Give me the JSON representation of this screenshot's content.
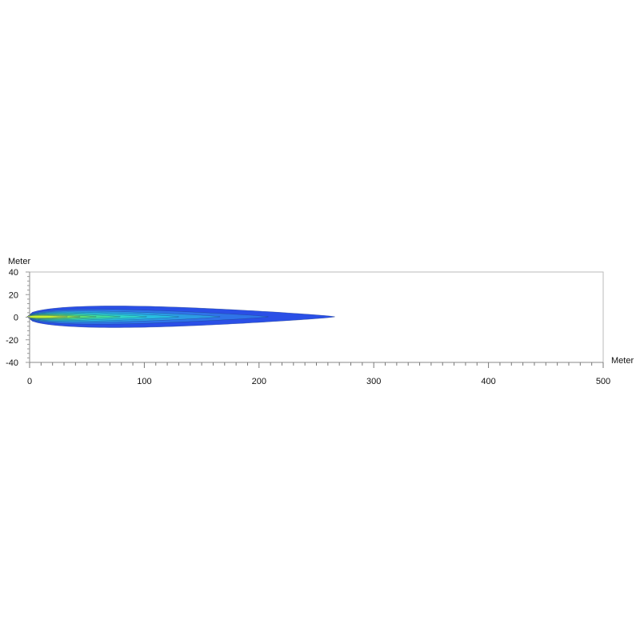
{
  "chart_data": {
    "type": "heatmap",
    "title": "",
    "xlabel": "Meter",
    "ylabel": "Meter",
    "xlim": [
      0,
      500
    ],
    "ylim": [
      -40,
      40
    ],
    "x_ticks": [
      0,
      100,
      200,
      300,
      400,
      500
    ],
    "y_ticks": [
      40,
      20,
      0,
      -20,
      -40
    ],
    "grid": false,
    "contours": [
      {
        "reach_m": 266,
        "half_width_m": 9.5,
        "color": "#2a4fe6"
      },
      {
        "reach_m": 208,
        "half_width_m": 6.5,
        "color": "#2f74e8"
      },
      {
        "reach_m": 166,
        "half_width_m": 5,
        "color": "#2c9be4"
      },
      {
        "reach_m": 130,
        "half_width_m": 4,
        "color": "#28bde0"
      },
      {
        "reach_m": 102,
        "half_width_m": 3.2,
        "color": "#30d4c8"
      },
      {
        "reach_m": 79,
        "half_width_m": 2.6,
        "color": "#40dc9c"
      },
      {
        "reach_m": 58,
        "half_width_m": 2,
        "color": "#5ee070"
      },
      {
        "reach_m": 44,
        "half_width_m": 1.5,
        "color": "#90e848"
      },
      {
        "reach_m": 33,
        "half_width_m": 1,
        "color": "#c8f030"
      }
    ]
  }
}
